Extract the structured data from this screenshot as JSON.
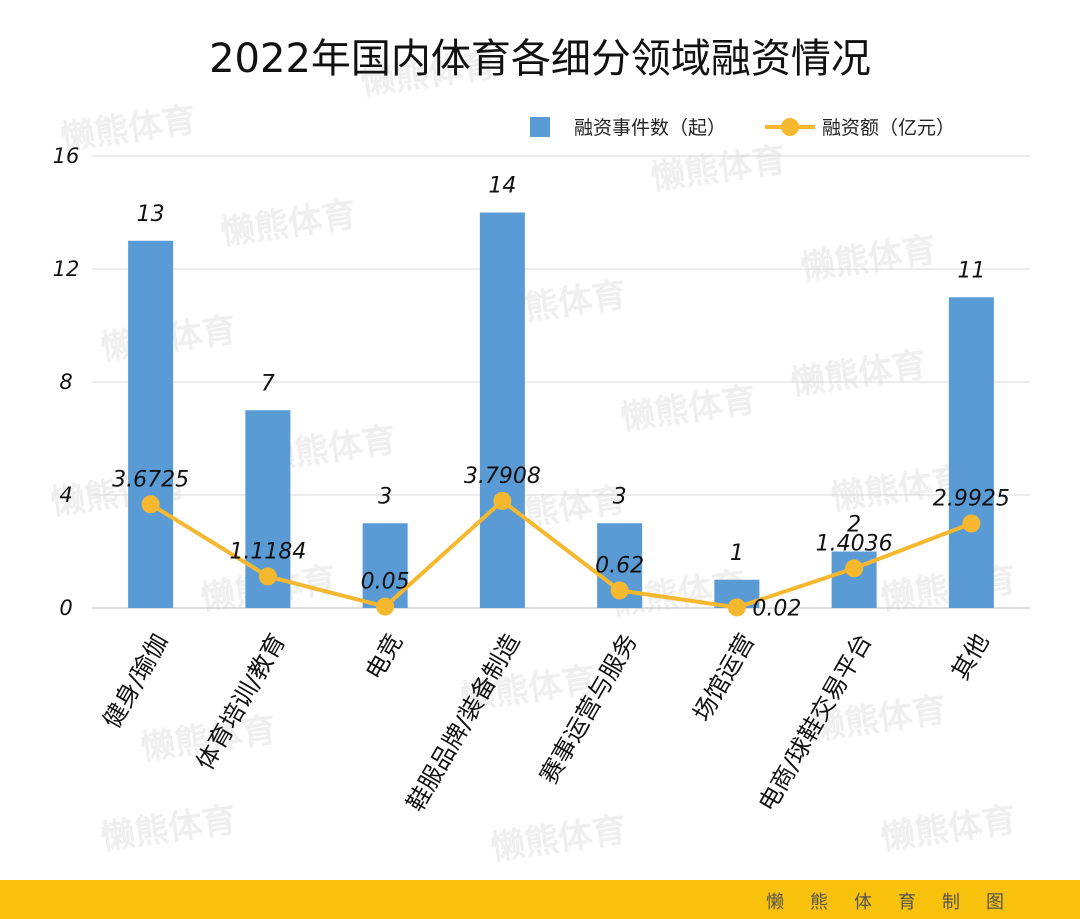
{
  "footer": {
    "credit": "懒熊体育制图"
  },
  "watermark_text": "懒熊体育",
  "chart_data": {
    "type": "bar",
    "title": "2022年国内体育各细分领域融资情况",
    "categories": [
      "健身/瑜伽",
      "体育培训/教育",
      "电竞",
      "鞋服品牌/装备制造",
      "赛事运营与服务",
      "场馆运营",
      "电商/球鞋交易平台",
      "其他"
    ],
    "series": [
      {
        "name": "融资事件数（起）",
        "kind": "bar",
        "color": "#5b9bd5",
        "values": [
          13,
          7,
          3,
          14,
          3,
          1,
          2,
          11
        ],
        "labels": [
          "13",
          "7",
          "3",
          "14",
          "3",
          "1",
          "2",
          "11"
        ]
      },
      {
        "name": "融资额（亿元）",
        "kind": "line",
        "color": "#f5b82e",
        "values": [
          3.6725,
          1.1184,
          0.05,
          3.7908,
          0.62,
          0.02,
          1.4036,
          2.9925
        ],
        "labels": [
          "3.6725",
          "1.1184",
          "0.05",
          "3.7908",
          "0.62",
          "0.02",
          "1.4036",
          "2.9925"
        ]
      }
    ],
    "yticks": [
      0,
      4,
      8,
      12,
      16
    ],
    "ylim": [
      0,
      16
    ],
    "grid": true,
    "legend": "top-right"
  }
}
